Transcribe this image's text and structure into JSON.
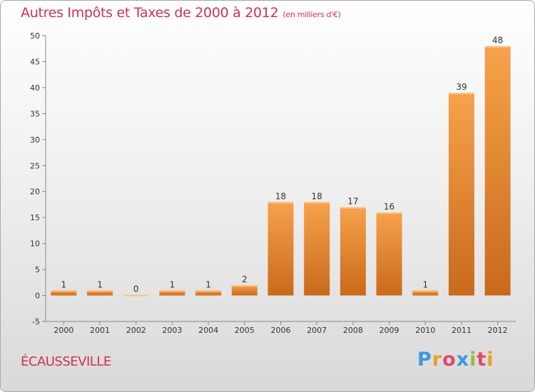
{
  "title": "Autres Impôts et Taxes de 2000 à 2012",
  "subtitle": "(en milliers d'€)",
  "commune": "ÉCAUSSEVILLE",
  "logo": {
    "letters": [
      "P",
      "r",
      "o",
      "x",
      "i",
      "t",
      "i"
    ],
    "colors": [
      "#3a9ad9",
      "#e8a020",
      "#e04a6a",
      "#3a9ad9",
      "#8fc040",
      "#e04a6a",
      "#e8a020"
    ]
  },
  "colors": {
    "bar_top": "#f7a24c",
    "bar_bottom": "#c86a1a",
    "axis": "#888888",
    "text": "#333333"
  },
  "chart_data": {
    "type": "bar",
    "categories": [
      "2000",
      "2001",
      "2002",
      "2003",
      "2004",
      "2005",
      "2006",
      "2007",
      "2008",
      "2009",
      "2010",
      "2011",
      "2012"
    ],
    "values": [
      1,
      1,
      0,
      1,
      1,
      2,
      18,
      18,
      17,
      16,
      1,
      39,
      48
    ],
    "data_labels": [
      "1",
      "1",
      "0",
      "1",
      "1",
      "2",
      "18",
      "18",
      "17",
      "16",
      "1",
      "39",
      "48"
    ],
    "ylim": [
      -5,
      50
    ],
    "yticks": [
      -5,
      0,
      5,
      10,
      15,
      20,
      25,
      30,
      35,
      40,
      45,
      50
    ],
    "grid": false,
    "legend": "none"
  }
}
